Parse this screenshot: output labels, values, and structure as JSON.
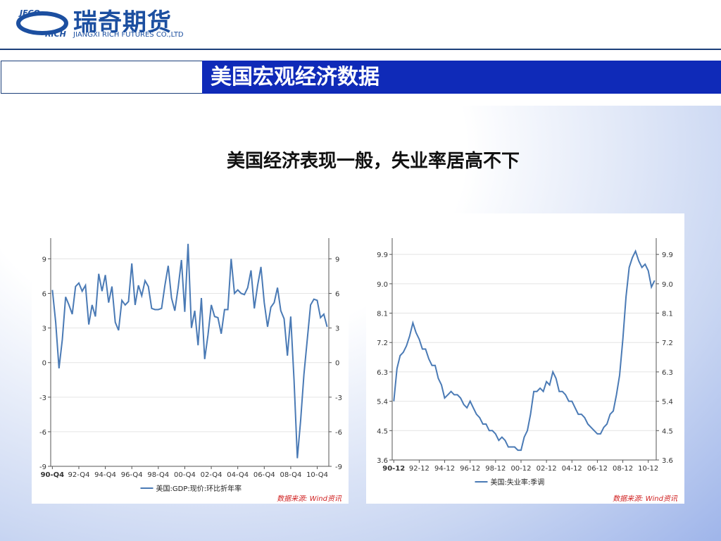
{
  "header": {
    "logo_mark_top": "JFCO",
    "logo_mark_bottom": "RICH",
    "company_name": "瑞奇期货",
    "company_name_en": "JIANGXI RICH FUTURES CO.,LTD",
    "section_title": "美国宏观经济数据"
  },
  "subtitle": "美国经济表现一般，失业率居高不下",
  "chart_data": [
    {
      "type": "line",
      "legend_position": "bottom",
      "source": "数据来源: Wind资讯",
      "categories": [
        "90-Q4",
        null,
        null,
        null,
        null,
        null,
        null,
        null,
        "92-Q4",
        null,
        null,
        null,
        null,
        null,
        null,
        null,
        "94-Q4",
        null,
        null,
        null,
        null,
        null,
        null,
        null,
        "96-Q4",
        null,
        null,
        null,
        null,
        null,
        null,
        null,
        "98-Q4",
        null,
        null,
        null,
        null,
        null,
        null,
        null,
        "00-Q4",
        null,
        null,
        null,
        null,
        null,
        null,
        null,
        "02-Q4",
        null,
        null,
        null,
        null,
        null,
        null,
        null,
        "04-Q4",
        null,
        null,
        null,
        null,
        null,
        null,
        null,
        "06-Q4",
        null,
        null,
        null,
        null,
        null,
        null,
        null,
        "08-Q4",
        null,
        null,
        null,
        null,
        null,
        null,
        null,
        "10-Q4",
        null,
        null,
        null
      ],
      "series": [
        {
          "name": "美国:GDP:现价:环比折年率",
          "color": "#4a7ab5",
          "values": [
            6.3,
            3.5,
            -0.5,
            2,
            5.7,
            5,
            4.2,
            6.6,
            6.9,
            6.2,
            6.7,
            3.3,
            5,
            4,
            7.7,
            6.2,
            7.6,
            5.2,
            6.6,
            3.5,
            2.8,
            5.4,
            5,
            5.3,
            8.6,
            5,
            6.7,
            5.8,
            7.1,
            6.6,
            4.7,
            4.6,
            4.6,
            4.7,
            6.7,
            8.4,
            5.6,
            4.5,
            6.5,
            8.9,
            4.4,
            10.3,
            3,
            4.5,
            1.5,
            5.6,
            0.3,
            2.4,
            5,
            4,
            3.9,
            2.5,
            4.6,
            4.6,
            9,
            6,
            6.3,
            6,
            5.9,
            6.5,
            8,
            4.7,
            6.7,
            8.3,
            5.2,
            3.1,
            4.8,
            5.2,
            6.5,
            4.5,
            3.8,
            0.6,
            4,
            -1.5,
            -8.3,
            -5,
            -1,
            2,
            5,
            5.5,
            5.4,
            3.9,
            4.2,
            3.1
          ]
        }
      ],
      "ylim": [
        -9,
        10.8
      ],
      "yticks": [
        -9,
        -6,
        -3,
        0,
        3,
        6,
        9
      ],
      "grid": true
    },
    {
      "type": "line",
      "legend_position": "bottom",
      "source": "数据来源: Wind资讯",
      "categories": [
        "90-12",
        null,
        null,
        null,
        null,
        null,
        null,
        null,
        "92-12",
        null,
        null,
        null,
        null,
        null,
        null,
        null,
        "94-12",
        null,
        null,
        null,
        null,
        null,
        null,
        null,
        "96-12",
        null,
        null,
        null,
        null,
        null,
        null,
        null,
        "98-12",
        null,
        null,
        null,
        null,
        null,
        null,
        null,
        "00-12",
        null,
        null,
        null,
        null,
        null,
        null,
        null,
        "02-12",
        null,
        null,
        null,
        null,
        null,
        null,
        null,
        "04-12",
        null,
        null,
        null,
        null,
        null,
        null,
        null,
        "06-12",
        null,
        null,
        null,
        null,
        null,
        null,
        null,
        "08-12",
        null,
        null,
        null,
        null,
        null,
        null,
        null,
        "10-12",
        null,
        null
      ],
      "series": [
        {
          "name": "美国:失业率:季调",
          "color": "#4a7ab5",
          "values": [
            5.4,
            6.4,
            6.8,
            6.9,
            7.1,
            7.4,
            7.8,
            7.5,
            7.3,
            7.0,
            7.0,
            6.7,
            6.5,
            6.5,
            6.1,
            5.9,
            5.5,
            5.6,
            5.7,
            5.6,
            5.6,
            5.5,
            5.3,
            5.2,
            5.4,
            5.2,
            5.0,
            4.9,
            4.7,
            4.7,
            4.5,
            4.5,
            4.4,
            4.2,
            4.3,
            4.2,
            4.0,
            4.0,
            4.0,
            3.9,
            3.9,
            4.3,
            4.5,
            5.0,
            5.7,
            5.7,
            5.8,
            5.7,
            6.0,
            5.9,
            6.3,
            6.1,
            5.7,
            5.7,
            5.6,
            5.4,
            5.4,
            5.2,
            5.0,
            5.0,
            4.9,
            4.7,
            4.6,
            4.5,
            4.4,
            4.4,
            4.6,
            4.7,
            5.0,
            5.1,
            5.6,
            6.2,
            7.3,
            8.6,
            9.5,
            9.8,
            10.0,
            9.7,
            9.5,
            9.6,
            9.4,
            8.9,
            9.1
          ]
        }
      ],
      "ylim": [
        3.6,
        10.4
      ],
      "yticks": [
        3.6,
        4.5,
        5.4,
        6.3,
        7.2,
        8.1,
        {
          "value": 9,
          "label": "9.0"
        },
        9.9
      ],
      "grid": true
    }
  ]
}
